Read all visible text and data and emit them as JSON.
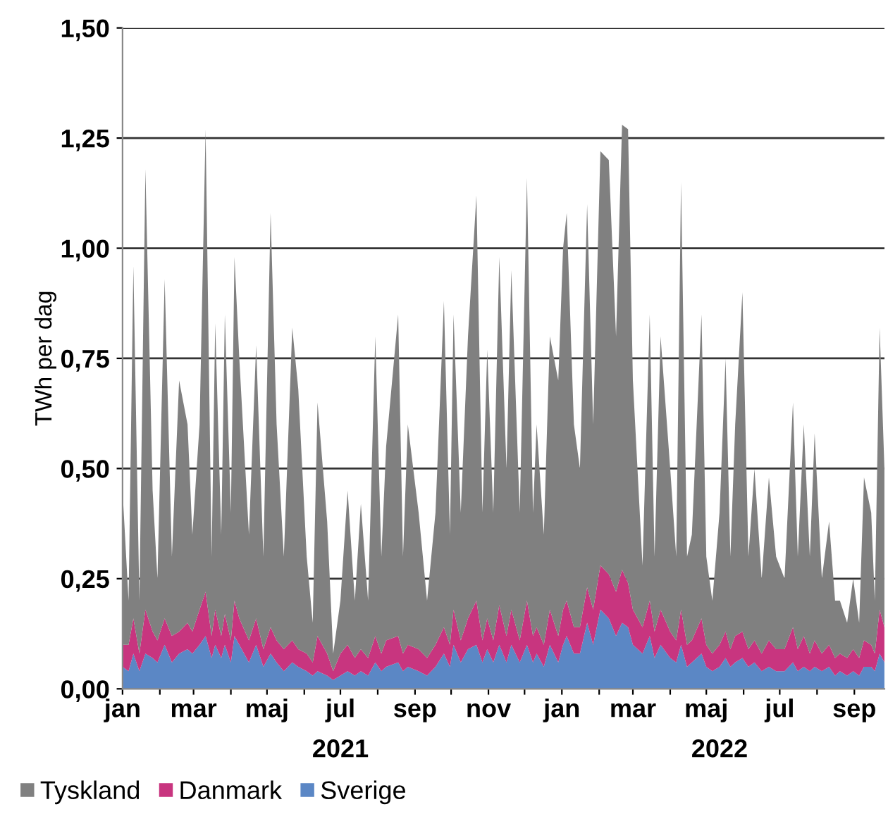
{
  "chart_data": {
    "type": "area",
    "stacked": true,
    "ylabel": "TWh per dag",
    "x": [
      "2021-01-01",
      "2021-01-06",
      "2021-01-10",
      "2021-01-15",
      "2021-01-20",
      "2021-01-26",
      "2021-01-30",
      "2021-02-05",
      "2021-02-11",
      "2021-02-17",
      "2021-02-24",
      "2021-02-28",
      "2021-03-06",
      "2021-03-11",
      "2021-03-16",
      "2021-03-19",
      "2021-03-24",
      "2021-03-27",
      "2021-04-01",
      "2021-04-04",
      "2021-04-08",
      "2021-04-16",
      "2021-04-22",
      "2021-04-28",
      "2021-05-04",
      "2021-05-09",
      "2021-05-15",
      "2021-05-22",
      "2021-05-27",
      "2021-06-03",
      "2021-06-08",
      "2021-06-12",
      "2021-06-20",
      "2021-06-25",
      "2021-07-01",
      "2021-07-07",
      "2021-07-13",
      "2021-07-18",
      "2021-07-24",
      "2021-07-30",
      "2021-08-04",
      "2021-08-08",
      "2021-08-18",
      "2021-08-22",
      "2021-08-26",
      "2021-09-04",
      "2021-09-11",
      "2021-09-18",
      "2021-09-25",
      "2021-09-30",
      "2021-10-03",
      "2021-10-09",
      "2021-10-15",
      "2021-10-22",
      "2021-10-27",
      "2021-10-31",
      "2021-11-05",
      "2021-11-10",
      "2021-11-16",
      "2021-11-20",
      "2021-11-27",
      "2021-12-03",
      "2021-12-08",
      "2021-12-11",
      "2021-12-17",
      "2021-12-22",
      "2021-12-29",
      "2022-01-02",
      "2022-01-05",
      "2022-01-11",
      "2022-01-16",
      "2022-01-22",
      "2022-01-27",
      "2022-02-02",
      "2022-02-09",
      "2022-02-15",
      "2022-02-20",
      "2022-02-25",
      "2022-03-01",
      "2022-03-09",
      "2022-03-15",
      "2022-03-19",
      "2022-03-24",
      "2022-04-01",
      "2022-04-06",
      "2022-04-10",
      "2022-04-15",
      "2022-04-19",
      "2022-04-27",
      "2022-05-01",
      "2022-05-06",
      "2022-05-12",
      "2022-05-17",
      "2022-05-21",
      "2022-05-25",
      "2022-05-31",
      "2022-06-05",
      "2022-06-10",
      "2022-06-16",
      "2022-06-22",
      "2022-06-28",
      "2022-07-05",
      "2022-07-12",
      "2022-07-16",
      "2022-07-21",
      "2022-07-26",
      "2022-07-30",
      "2022-08-05",
      "2022-08-11",
      "2022-08-16",
      "2022-08-20",
      "2022-08-26",
      "2022-08-31",
      "2022-09-05",
      "2022-09-09",
      "2022-09-15",
      "2022-09-18",
      "2022-09-22",
      "2022-09-26"
    ],
    "series": [
      {
        "name": "Sverige",
        "color": "#5b87c5",
        "values": [
          0.05,
          0.04,
          0.08,
          0.04,
          0.08,
          0.07,
          0.06,
          0.1,
          0.06,
          0.08,
          0.09,
          0.08,
          0.1,
          0.12,
          0.07,
          0.1,
          0.07,
          0.1,
          0.06,
          0.12,
          0.1,
          0.06,
          0.1,
          0.05,
          0.08,
          0.06,
          0.04,
          0.06,
          0.05,
          0.04,
          0.03,
          0.04,
          0.03,
          0.02,
          0.03,
          0.04,
          0.03,
          0.04,
          0.03,
          0.06,
          0.04,
          0.05,
          0.06,
          0.04,
          0.05,
          0.04,
          0.03,
          0.05,
          0.08,
          0.05,
          0.1,
          0.06,
          0.09,
          0.1,
          0.06,
          0.09,
          0.06,
          0.1,
          0.06,
          0.1,
          0.06,
          0.1,
          0.06,
          0.08,
          0.05,
          0.1,
          0.06,
          0.1,
          0.12,
          0.08,
          0.08,
          0.15,
          0.1,
          0.18,
          0.16,
          0.12,
          0.15,
          0.14,
          0.1,
          0.08,
          0.12,
          0.07,
          0.1,
          0.07,
          0.06,
          0.1,
          0.05,
          0.06,
          0.08,
          0.05,
          0.04,
          0.05,
          0.07,
          0.05,
          0.06,
          0.07,
          0.05,
          0.06,
          0.04,
          0.05,
          0.04,
          0.04,
          0.06,
          0.04,
          0.05,
          0.04,
          0.05,
          0.04,
          0.05,
          0.03,
          0.04,
          0.03,
          0.04,
          0.03,
          0.05,
          0.05,
          0.04,
          0.08,
          0.06
        ]
      },
      {
        "name": "Danmark",
        "color": "#c8357f",
        "values": [
          0.05,
          0.06,
          0.08,
          0.04,
          0.1,
          0.06,
          0.05,
          0.06,
          0.06,
          0.05,
          0.06,
          0.05,
          0.08,
          0.1,
          0.05,
          0.08,
          0.05,
          0.07,
          0.05,
          0.08,
          0.06,
          0.05,
          0.06,
          0.04,
          0.06,
          0.05,
          0.05,
          0.05,
          0.04,
          0.04,
          0.03,
          0.08,
          0.05,
          0.02,
          0.05,
          0.06,
          0.04,
          0.05,
          0.04,
          0.06,
          0.04,
          0.06,
          0.06,
          0.04,
          0.05,
          0.05,
          0.04,
          0.05,
          0.06,
          0.05,
          0.08,
          0.05,
          0.07,
          0.1,
          0.05,
          0.07,
          0.05,
          0.09,
          0.06,
          0.08,
          0.05,
          0.1,
          0.06,
          0.06,
          0.05,
          0.08,
          0.06,
          0.08,
          0.08,
          0.06,
          0.06,
          0.08,
          0.08,
          0.1,
          0.1,
          0.1,
          0.12,
          0.1,
          0.08,
          0.06,
          0.08,
          0.06,
          0.08,
          0.06,
          0.05,
          0.08,
          0.05,
          0.05,
          0.08,
          0.05,
          0.04,
          0.05,
          0.06,
          0.04,
          0.06,
          0.06,
          0.04,
          0.05,
          0.04,
          0.06,
          0.05,
          0.05,
          0.08,
          0.05,
          0.07,
          0.04,
          0.06,
          0.04,
          0.05,
          0.04,
          0.04,
          0.04,
          0.05,
          0.04,
          0.06,
          0.05,
          0.04,
          0.1,
          0.08
        ]
      },
      {
        "name": "Tyskland",
        "color": "#808080",
        "values": [
          0.35,
          0.1,
          0.8,
          0.12,
          1.0,
          0.32,
          0.14,
          0.77,
          0.18,
          0.57,
          0.45,
          0.22,
          0.42,
          1.05,
          0.18,
          0.65,
          0.23,
          0.68,
          0.29,
          0.78,
          0.59,
          0.24,
          0.62,
          0.21,
          0.94,
          0.49,
          0.21,
          0.71,
          0.59,
          0.22,
          0.09,
          0.53,
          0.3,
          0.04,
          0.12,
          0.35,
          0.13,
          0.33,
          0.13,
          0.68,
          0.22,
          0.44,
          0.73,
          0.22,
          0.5,
          0.31,
          0.13,
          0.3,
          0.74,
          0.25,
          0.67,
          0.29,
          0.64,
          0.92,
          0.29,
          0.61,
          0.29,
          0.79,
          0.38,
          0.77,
          0.29,
          0.96,
          0.28,
          0.46,
          0.25,
          0.62,
          0.58,
          0.82,
          0.88,
          0.46,
          0.36,
          0.87,
          0.42,
          0.94,
          0.94,
          0.58,
          1.01,
          1.03,
          0.52,
          0.14,
          0.65,
          0.17,
          0.62,
          0.37,
          0.19,
          0.97,
          0.2,
          0.24,
          0.69,
          0.2,
          0.12,
          0.3,
          0.62,
          0.21,
          0.48,
          0.77,
          0.21,
          0.39,
          0.17,
          0.37,
          0.21,
          0.16,
          0.51,
          0.21,
          0.48,
          0.22,
          0.47,
          0.17,
          0.28,
          0.13,
          0.12,
          0.08,
          0.16,
          0.08,
          0.37,
          0.3,
          0.12,
          0.64,
          0.36
        ]
      }
    ],
    "xlim": [
      "2021-01-01",
      "2022-09-26"
    ],
    "xticks": [
      {
        "value": "2021-01-01",
        "label": "jan"
      },
      {
        "value": "2021-02-01",
        "label": null
      },
      {
        "value": "2021-03-01",
        "label": "mar"
      },
      {
        "value": "2021-04-01",
        "label": null
      },
      {
        "value": "2021-05-01",
        "label": "maj"
      },
      {
        "value": "2021-06-01",
        "label": null
      },
      {
        "value": "2021-07-01",
        "label": "jul"
      },
      {
        "value": "2021-08-01",
        "label": null
      },
      {
        "value": "2021-09-01",
        "label": "sep"
      },
      {
        "value": "2021-10-01",
        "label": null
      },
      {
        "value": "2021-11-01",
        "label": "nov"
      },
      {
        "value": "2021-12-01",
        "label": null
      },
      {
        "value": "2022-01-01",
        "label": "jan"
      },
      {
        "value": "2022-02-01",
        "label": null
      },
      {
        "value": "2022-03-01",
        "label": "mar"
      },
      {
        "value": "2022-04-01",
        "label": null
      },
      {
        "value": "2022-05-01",
        "label": "maj"
      },
      {
        "value": "2022-06-01",
        "label": null
      },
      {
        "value": "2022-07-01",
        "label": "jul"
      },
      {
        "value": "2022-08-01",
        "label": null
      },
      {
        "value": "2022-09-01",
        "label": "sep"
      }
    ],
    "x2lim": [
      "2021-01-01",
      "2022-09-26"
    ],
    "x2ticks": [
      {
        "value": "2021-07-01",
        "label": "2021"
      },
      {
        "value": "2022-05-12",
        "label": "2022"
      }
    ],
    "ylim": [
      0,
      1.5
    ],
    "yticks": [
      {
        "value": 0,
        "label": "0,00"
      },
      {
        "value": 0.25,
        "label": "0,25"
      },
      {
        "value": 0.5,
        "label": "0,50"
      },
      {
        "value": 0.75,
        "label": "0,75"
      },
      {
        "value": 1.0,
        "label": "1,00"
      },
      {
        "value": 1.25,
        "label": "1,25"
      },
      {
        "value": 1.5,
        "label": "1,50"
      }
    ],
    "grid": "y",
    "legend": "bottom left"
  }
}
